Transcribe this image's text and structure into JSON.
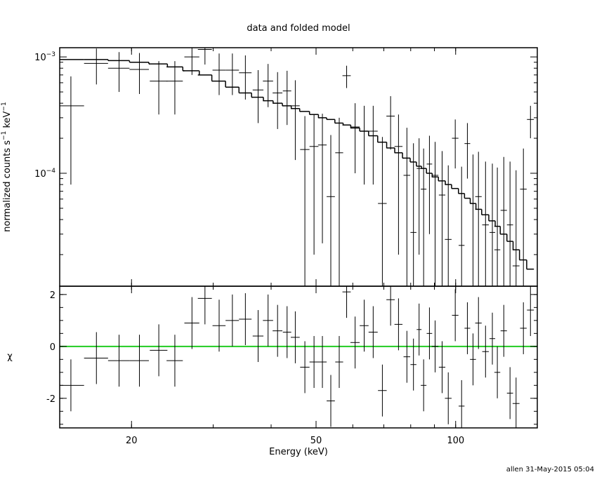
{
  "footer": "allen 31-May-2015 05:04",
  "chart_data": [
    {
      "type": "errorbar",
      "title": "data and folded model",
      "ylabel": [
        "normalized counts s",
        "−1",
        " keV",
        "−1"
      ],
      "xscale": "log",
      "yscale": "log",
      "xlim": [
        14,
        150
      ],
      "ylim": [
        1.07e-05,
        0.0012
      ],
      "xticks": [
        20,
        50,
        100
      ],
      "yticks": [
        {
          "value": 0.001,
          "label": "10",
          "exp": "−3"
        },
        {
          "value": 0.0001,
          "label": "10",
          "exp": "−4"
        }
      ],
      "color": "#000000",
      "x": [
        14.8,
        16.8,
        18.8,
        20.8,
        22.9,
        24.8,
        27,
        28.8,
        30.9,
        33,
        35.2,
        37.5,
        39.4,
        41.3,
        43.3,
        45.1,
        47.3,
        49.5,
        51.6,
        53.8,
        56.1,
        58.2,
        60.7,
        63.5,
        66.4,
        69.5,
        72.4,
        75.3,
        78.5,
        81.1,
        83.4,
        85.3,
        87.8,
        90.3,
        93.5,
        96.4,
        99.8,
        103,
        106,
        109,
        112,
        116,
        120,
        123,
        127,
        131,
        135,
        140,
        145
      ],
      "xerr": [
        1.0,
        1.0,
        1.0,
        1.0,
        1.0,
        1.0,
        1.0,
        1.0,
        1.0,
        1.1,
        1.1,
        1.0,
        1.0,
        1.0,
        0.9,
        1.0,
        1.1,
        1.1,
        1.1,
        1.1,
        1.1,
        1.2,
        1.4,
        1.4,
        1.5,
        1.5,
        1.5,
        1.5,
        1.3,
        1.2,
        1.0,
        1.2,
        1.2,
        1.5,
        1.5,
        1.6,
        1.6,
        1.5,
        1.5,
        1.6,
        1.8,
        1.9,
        1.7,
        1.8,
        2.0,
        2.0,
        2.3,
        2.3,
        2.5
      ],
      "values": [
        0.00038,
        0.00088,
        0.0008,
        0.00078,
        0.00062,
        0.00062,
        0.001,
        0.00116,
        0.00077,
        0.00077,
        0.00073,
        0.00052,
        0.00062,
        0.00049,
        0.00051,
        0.00038,
        0.00016,
        0.00017,
        0.000175,
        6.3e-05,
        0.00015,
        0.00069,
        0.00025,
        0.00023,
        0.00023,
        5.5e-05,
        0.00031,
        0.00017,
        9.6e-05,
        3.1e-05,
        0.00011,
        7.3e-05,
        0.00012,
        9.6e-05,
        6.5e-05,
        2.7e-05,
        0.0002,
        2.4e-05,
        0.00018,
        5.5e-05,
        6.3e-05,
        3.6e-05,
        3.1e-05,
        2.2e-05,
        4.8e-05,
        3.6e-05,
        1.6e-05,
        7.3e-05,
        0.00029
      ],
      "yerr": [
        0.0003,
        0.0003,
        0.0003,
        0.0003,
        0.0003,
        0.0003,
        0.0003,
        0.0003,
        0.0003,
        0.0003,
        0.0003,
        0.00025,
        0.00025,
        0.00025,
        0.00025,
        0.00025,
        0.00015,
        0.00015,
        0.00015,
        0.00015,
        0.00015,
        0.00015,
        0.00015,
        0.00015,
        0.00015,
        0.00015,
        0.00015,
        0.00015,
        0.00015,
        0.00015,
        9e-05,
        9e-05,
        9e-05,
        9e-05,
        9e-05,
        9e-05,
        9e-05,
        9e-05,
        9e-05,
        9e-05,
        9e-05,
        9e-05,
        9e-05,
        9e-05,
        9e-05,
        9e-05,
        9e-05,
        9e-05,
        9e-05
      ],
      "model": [
        0.00095,
        0.00095,
        0.00093,
        0.0009,
        0.00087,
        0.00082,
        0.00076,
        0.0007,
        0.00062,
        0.00055,
        0.00049,
        0.00045,
        0.00042,
        0.0004,
        0.00038,
        0.00036,
        0.00034,
        0.00032,
        0.0003,
        0.00029,
        0.00027,
        0.00026,
        0.000245,
        0.00023,
        0.00021,
        0.000185,
        0.000165,
        0.00015,
        0.000135,
        0.000125,
        0.000115,
        0.00011,
        0.0001,
        9.3e-05,
        8.6e-05,
        8e-05,
        7.4e-05,
        6.7e-05,
        6.1e-05,
        5.5e-05,
        4.9e-05,
        4.4e-05,
        3.9e-05,
        3.5e-05,
        3e-05,
        2.6e-05,
        2.2e-05,
        1.8e-05,
        1.5e-05
      ]
    },
    {
      "type": "residual",
      "ylabel": "χ",
      "xlabel": "Energy (keV)",
      "xscale": "log",
      "xlim": [
        14,
        150
      ],
      "ylim": [
        -3.14,
        2.32
      ],
      "xticks": [
        20,
        50,
        100
      ],
      "yticks": [
        -2,
        0,
        2
      ],
      "color": "#000000",
      "hline": 0,
      "hline_color": "#22cc22",
      "x": [
        14.8,
        16.8,
        18.8,
        20.8,
        22.9,
        24.8,
        27,
        28.8,
        30.9,
        33,
        35.2,
        37.5,
        39.4,
        41.3,
        43.3,
        45.1,
        47.3,
        49.5,
        51.6,
        53.8,
        56.1,
        58.2,
        60.7,
        63.5,
        66.4,
        69.5,
        72.4,
        75.3,
        78.5,
        81.1,
        83.4,
        85.3,
        87.8,
        90.3,
        93.5,
        96.4,
        99.8,
        103,
        106,
        109,
        112,
        116,
        120,
        123,
        127,
        131,
        135,
        140,
        145
      ],
      "xerr": [
        1.0,
        1.0,
        1.0,
        1.0,
        1.0,
        1.0,
        1.0,
        1.0,
        1.0,
        1.1,
        1.1,
        1.0,
        1.0,
        1.0,
        0.9,
        1.0,
        1.1,
        1.1,
        1.1,
        1.1,
        1.1,
        1.2,
        1.4,
        1.4,
        1.5,
        1.5,
        1.5,
        1.5,
        1.3,
        1.2,
        1.0,
        1.2,
        1.2,
        1.5,
        1.5,
        1.6,
        1.6,
        1.5,
        1.5,
        1.6,
        1.8,
        1.9,
        1.7,
        1.8,
        2.0,
        2.0,
        2.3,
        2.3,
        2.5
      ],
      "values": [
        -1.5,
        -0.45,
        -0.55,
        -0.55,
        -0.15,
        -0.55,
        0.9,
        1.85,
        0.8,
        1.0,
        1.05,
        0.4,
        1.0,
        0.6,
        0.55,
        0.35,
        -0.8,
        -0.6,
        -0.6,
        -2.1,
        -0.6,
        2.1,
        0.15,
        0.8,
        0.55,
        -1.7,
        1.8,
        0.85,
        -0.4,
        -0.7,
        0.65,
        -1.5,
        0.5,
        0.0,
        -0.8,
        -2.0,
        1.2,
        -2.3,
        0.7,
        -0.5,
        0.9,
        -0.2,
        0.3,
        -1.0,
        0.6,
        -1.8,
        -2.2,
        0.7,
        1.4
      ],
      "yerr": [
        1,
        1,
        1,
        1,
        1,
        1,
        1,
        1,
        1,
        1,
        1,
        1,
        1,
        1,
        1,
        1,
        1,
        1,
        1,
        1,
        1,
        1,
        1,
        1,
        1,
        1,
        1,
        1,
        1,
        1,
        1,
        1,
        1,
        1,
        1,
        1,
        1,
        1,
        1,
        1,
        1,
        1,
        1,
        1,
        1,
        1,
        1,
        1,
        1
      ]
    }
  ]
}
